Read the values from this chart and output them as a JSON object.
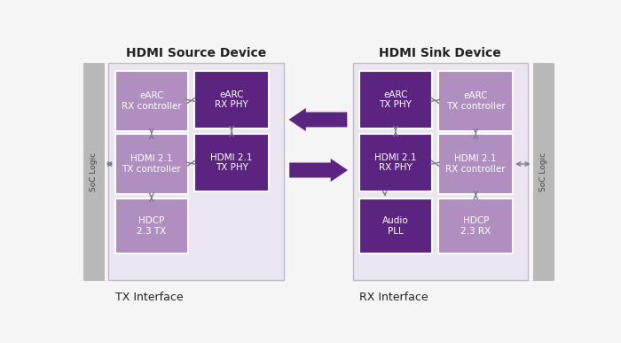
{
  "title_left": "HDMI Source Device",
  "title_right": "HDMI Sink Device",
  "label_left": "TX Interface",
  "label_right": "RX Interface",
  "soc_label": "SoC Logic",
  "bg_color": "#f5f5f5",
  "soc_bar_color": "#b8b8b8",
  "light_purple": "#b08ec0",
  "dark_purple": "#5a2480",
  "inner_bg": "#eae5f0",
  "outer_bg": "#e8e8e8",
  "arrow_double": "#7a7a8a",
  "big_arrow_color": "#5a2480",
  "text_dark": "#222222",
  "white": "#ffffff"
}
